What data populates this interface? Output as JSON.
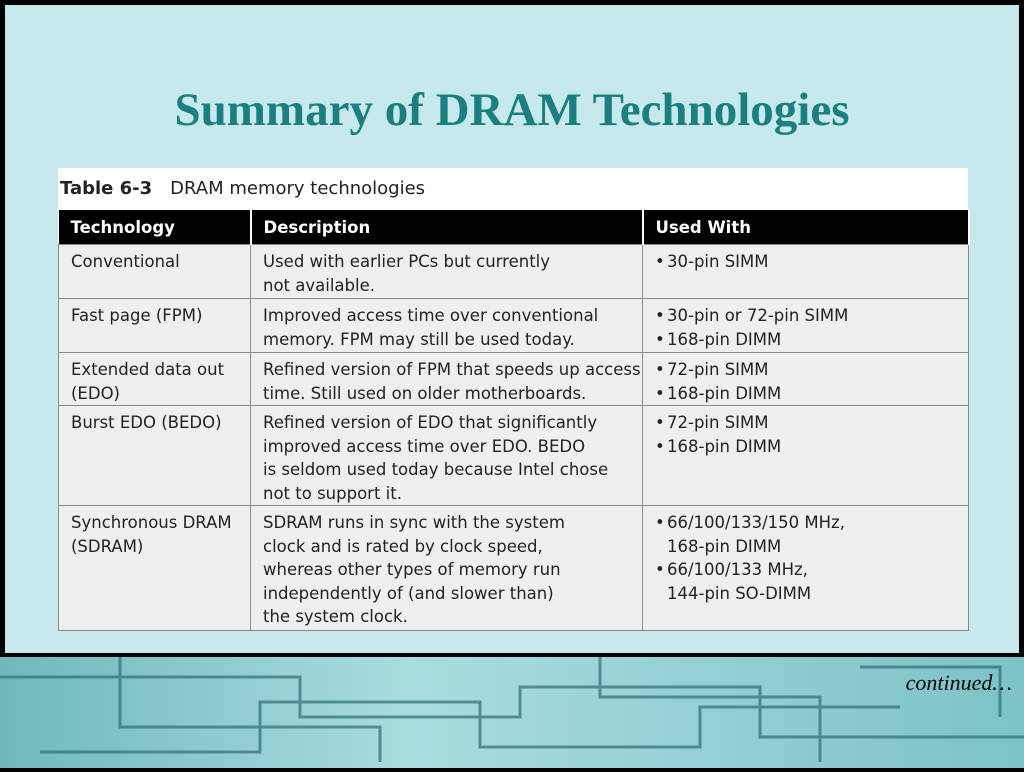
{
  "title": "Summary of DRAM Technologies",
  "table": {
    "label": "Table 6-3",
    "caption": "DRAM memory technologies",
    "headers": [
      "Technology",
      "Description",
      "Used With"
    ],
    "rows": [
      {
        "technology": [
          "Conventional"
        ],
        "description": [
          "Used with earlier PCs but currently",
          "not available."
        ],
        "used_with": [
          [
            "30-pin SIMM"
          ]
        ]
      },
      {
        "technology": [
          "Fast page (FPM)"
        ],
        "description": [
          "Improved access time over conventional",
          "memory. FPM may still be used today."
        ],
        "used_with": [
          [
            "30-pin or 72-pin SIMM"
          ],
          [
            "168-pin DIMM"
          ]
        ]
      },
      {
        "technology": [
          "Extended data out",
          "(EDO)"
        ],
        "description": [
          "Refined version of FPM that speeds up access",
          "time. Still used on older motherboards."
        ],
        "used_with": [
          [
            "72-pin SIMM"
          ],
          [
            "168-pin DIMM"
          ]
        ]
      },
      {
        "technology": [
          "Burst EDO (BEDO)"
        ],
        "description": [
          "Refined version of EDO that significantly",
          "improved access time over EDO. BEDO",
          "is seldom used today because Intel chose",
          "not to support it."
        ],
        "used_with": [
          [
            "72-pin SIMM"
          ],
          [
            "168-pin DIMM"
          ]
        ]
      },
      {
        "technology": [
          "Synchronous DRAM",
          "(SDRAM)"
        ],
        "description": [
          "SDRAM runs in sync with the system",
          "clock and is rated by clock speed,",
          "whereas other types of memory run",
          "independently of (and slower than)",
          "the system clock."
        ],
        "used_with": [
          [
            "66/100/133/150 MHz,",
            "168-pin DIMM"
          ],
          [
            "66/100/133 MHz,",
            "144-pin SO-DIMM"
          ]
        ]
      }
    ]
  },
  "footer": "continued…"
}
